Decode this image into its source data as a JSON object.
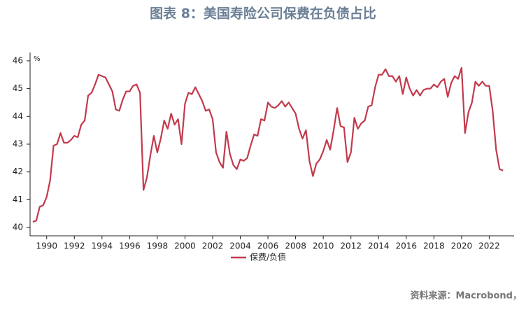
{
  "chart_data": {
    "type": "line",
    "title": "图表 8：美国寿险公司保费在负债占比",
    "y_label": "%",
    "source": "资料来源：Macrobond，",
    "xlim": [
      1988.8,
      2023.8
    ],
    "xticks": [
      1990,
      1992,
      1994,
      1996,
      1998,
      2000,
      2002,
      2004,
      2006,
      2008,
      2010,
      2012,
      2014,
      2016,
      2018,
      2020,
      2022
    ],
    "ylim": [
      39.7,
      46.3
    ],
    "yticks": [
      40,
      41,
      42,
      43,
      44,
      45,
      46
    ],
    "x": [
      1989,
      1989.25,
      1989.5,
      1989.75,
      1990,
      1990.25,
      1990.5,
      1990.75,
      1991,
      1991.25,
      1991.5,
      1991.75,
      1992,
      1992.25,
      1992.5,
      1992.75,
      1993,
      1993.25,
      1993.5,
      1993.75,
      1994,
      1994.25,
      1994.5,
      1994.75,
      1995,
      1995.25,
      1995.5,
      1995.75,
      1996,
      1996.25,
      1996.5,
      1996.75,
      1997,
      1997.25,
      1997.5,
      1997.75,
      1998,
      1998.25,
      1998.5,
      1998.75,
      1999,
      1999.25,
      1999.5,
      1999.75,
      2000,
      2000.25,
      2000.5,
      2000.75,
      2001,
      2001.25,
      2001.5,
      2001.75,
      2002,
      2002.25,
      2002.5,
      2002.75,
      2003,
      2003.25,
      2003.5,
      2003.75,
      2004,
      2004.25,
      2004.5,
      2004.75,
      2005,
      2005.25,
      2005.5,
      2005.75,
      2006,
      2006.25,
      2006.5,
      2006.75,
      2007,
      2007.25,
      2007.5,
      2007.75,
      2008,
      2008.25,
      2008.5,
      2008.75,
      2009,
      2009.25,
      2009.5,
      2009.75,
      2010,
      2010.25,
      2010.5,
      2010.75,
      2011,
      2011.25,
      2011.5,
      2011.75,
      2012,
      2012.25,
      2012.5,
      2012.75,
      2013,
      2013.25,
      2013.5,
      2013.75,
      2014,
      2014.25,
      2014.5,
      2014.75,
      2015,
      2015.25,
      2015.5,
      2015.75,
      2016,
      2016.25,
      2016.5,
      2016.75,
      2017,
      2017.25,
      2017.5,
      2017.75,
      2018,
      2018.25,
      2018.5,
      2018.75,
      2019,
      2019.25,
      2019.5,
      2019.75,
      2020,
      2020.25,
      2020.5,
      2020.75,
      2021,
      2021.25,
      2021.5,
      2021.75,
      2022,
      2022.25,
      2022.5,
      2022.75,
      2023
    ],
    "series": [
      {
        "name": "保费/负债",
        "color": "#c23a4c",
        "values": [
          40.2,
          40.25,
          40.75,
          40.8,
          41.1,
          41.7,
          42.95,
          43.0,
          43.4,
          43.05,
          43.05,
          43.15,
          43.3,
          43.25,
          43.7,
          43.85,
          44.75,
          44.85,
          45.15,
          45.5,
          45.45,
          45.4,
          45.15,
          44.9,
          44.25,
          44.2,
          44.6,
          44.9,
          44.9,
          45.1,
          45.15,
          44.85,
          41.35,
          41.8,
          42.6,
          43.3,
          42.7,
          43.2,
          43.85,
          43.55,
          44.1,
          43.7,
          43.9,
          43.0,
          44.45,
          44.85,
          44.8,
          45.05,
          44.8,
          44.55,
          44.2,
          44.25,
          43.9,
          42.7,
          42.35,
          42.15,
          43.45,
          42.65,
          42.25,
          42.1,
          42.45,
          42.4,
          42.5,
          42.95,
          43.35,
          43.3,
          43.9,
          43.85,
          44.5,
          44.35,
          44.3,
          44.4,
          44.55,
          44.35,
          44.5,
          44.3,
          44.1,
          43.55,
          43.2,
          43.5,
          42.4,
          41.85,
          42.3,
          42.45,
          42.75,
          43.15,
          42.8,
          43.5,
          44.3,
          43.65,
          43.6,
          42.35,
          42.7,
          43.95,
          43.55,
          43.75,
          43.85,
          44.35,
          44.4,
          45.05,
          45.5,
          45.5,
          45.7,
          45.45,
          45.45,
          45.25,
          45.45,
          44.8,
          45.4,
          45.0,
          44.75,
          44.95,
          44.75,
          44.95,
          45.0,
          45.0,
          45.15,
          45.05,
          45.25,
          45.35,
          44.7,
          45.2,
          45.45,
          45.35,
          45.75,
          43.4,
          44.15,
          44.5,
          45.25,
          45.1,
          45.25,
          45.1,
          45.1,
          44.2,
          42.8,
          42.1,
          42.05
        ]
      }
    ]
  }
}
